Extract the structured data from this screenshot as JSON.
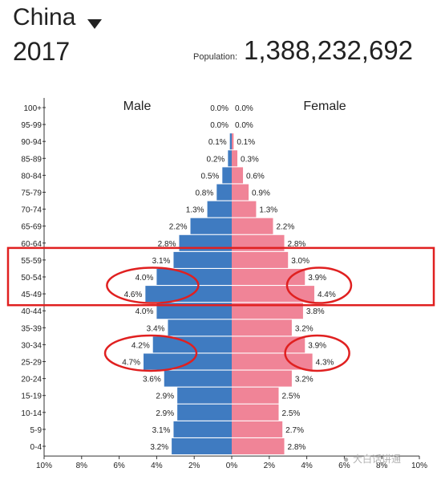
{
  "header": {
    "country": "China",
    "year": "2017",
    "population_label": "Population:",
    "population_value": "1,388,232,692"
  },
  "watermark": {
    "text": "大白话讲通",
    "icon": "wechat-icon"
  },
  "colors": {
    "male": "#3f7bc1",
    "female": "#f08497",
    "highlight": "#e02020"
  },
  "chart_data": {
    "type": "bar",
    "orientation": "horizontal-population-pyramid",
    "series_labels": {
      "male": "Male",
      "female": "Female"
    },
    "categories": [
      "100+",
      "95-99",
      "90-94",
      "85-89",
      "80-84",
      "75-79",
      "70-74",
      "65-69",
      "60-64",
      "55-59",
      "50-54",
      "45-49",
      "40-44",
      "35-39",
      "30-34",
      "25-29",
      "20-24",
      "15-19",
      "10-14",
      "5-9",
      "0-4"
    ],
    "male_values": [
      0.0,
      0.0,
      0.1,
      0.2,
      0.5,
      0.8,
      1.3,
      2.2,
      2.8,
      3.1,
      4.0,
      4.6,
      4.0,
      3.4,
      4.2,
      4.7,
      3.6,
      2.9,
      2.9,
      3.1,
      3.2
    ],
    "female_values": [
      0.0,
      0.0,
      0.1,
      0.3,
      0.6,
      0.9,
      1.3,
      2.2,
      2.8,
      3.0,
      3.9,
      4.4,
      3.8,
      3.2,
      3.9,
      4.3,
      3.2,
      2.5,
      2.5,
      2.7,
      2.8
    ],
    "male_labels": [
      "0.0%",
      "0.0%",
      "0.1%",
      "0.2%",
      "0.5%",
      "0.8%",
      "1.3%",
      "2.2%",
      "2.8%",
      "3.1%",
      "4.0%",
      "4.6%",
      "4.0%",
      "3.4%",
      "4.2%",
      "4.7%",
      "3.6%",
      "2.9%",
      "2.9%",
      "3.1%",
      "3.2%"
    ],
    "female_labels": [
      "0.0%",
      "0.0%",
      "0.1%",
      "0.3%",
      "0.6%",
      "0.9%",
      "1.3%",
      "2.2%",
      "2.8%",
      "3.0%",
      "3.9%",
      "4.4%",
      "3.8%",
      "3.2%",
      "3.9%",
      "4.3%",
      "3.2%",
      "2.5%",
      "2.5%",
      "2.7%",
      "2.8%"
    ],
    "x_ticks": [
      "10%",
      "8%",
      "6%",
      "4%",
      "2%",
      "0%",
      "2%",
      "4%",
      "6%",
      "8%",
      "10%"
    ],
    "xlim": [
      -10,
      10
    ],
    "grid": false,
    "annotations": {
      "highlight_rectangle_categories": [
        "55-59",
        "50-54",
        "45-49"
      ],
      "circled": [
        {
          "side": "male",
          "categories": [
            "50-54",
            "45-49"
          ]
        },
        {
          "side": "female",
          "categories": [
            "50-54",
            "45-49"
          ]
        },
        {
          "side": "male",
          "categories": [
            "30-34",
            "25-29"
          ]
        },
        {
          "side": "female",
          "categories": [
            "30-34",
            "25-29"
          ]
        }
      ]
    }
  }
}
